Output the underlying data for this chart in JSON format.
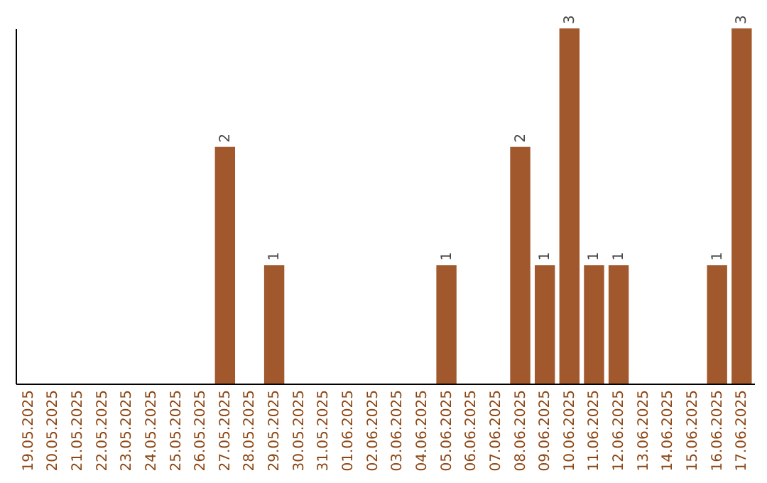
{
  "chart_data": {
    "type": "bar",
    "categories": [
      "19.05.2025",
      "20.05.2025",
      "21.05.2025",
      "22.05.2025",
      "23.05.2025",
      "24.05.2025",
      "25.05.2025",
      "26.05.2025",
      "27.05.2025",
      "28.05.2025",
      "29.05.2025",
      "30.05.2025",
      "31.05.2025",
      "01.06.2025",
      "02.06.2025",
      "03.06.2025",
      "04.06.2025",
      "05.06.2025",
      "06.06.2025",
      "07.06.2025",
      "08.06.2025",
      "09.06.2025",
      "10.06.2025",
      "11.06.2025",
      "12.06.2025",
      "13.06.2025",
      "14.06.2025",
      "15.06.2025",
      "16.06.2025",
      "17.06.2025"
    ],
    "values": [
      0,
      0,
      0,
      0,
      0,
      0,
      0,
      0,
      2,
      0,
      1,
      0,
      0,
      0,
      0,
      0,
      0,
      1,
      0,
      0,
      2,
      1,
      3,
      1,
      1,
      0,
      0,
      0,
      1,
      3
    ],
    "value_labels": [
      null,
      null,
      null,
      null,
      null,
      null,
      null,
      null,
      "2",
      null,
      "1",
      null,
      null,
      null,
      null,
      null,
      null,
      "1",
      null,
      null,
      "2",
      "1",
      "3",
      "1",
      "1",
      null,
      null,
      null,
      "1",
      "3"
    ],
    "color": "#a0582c",
    "ylim": [
      0,
      3
    ],
    "tick_labels": "x"
  }
}
